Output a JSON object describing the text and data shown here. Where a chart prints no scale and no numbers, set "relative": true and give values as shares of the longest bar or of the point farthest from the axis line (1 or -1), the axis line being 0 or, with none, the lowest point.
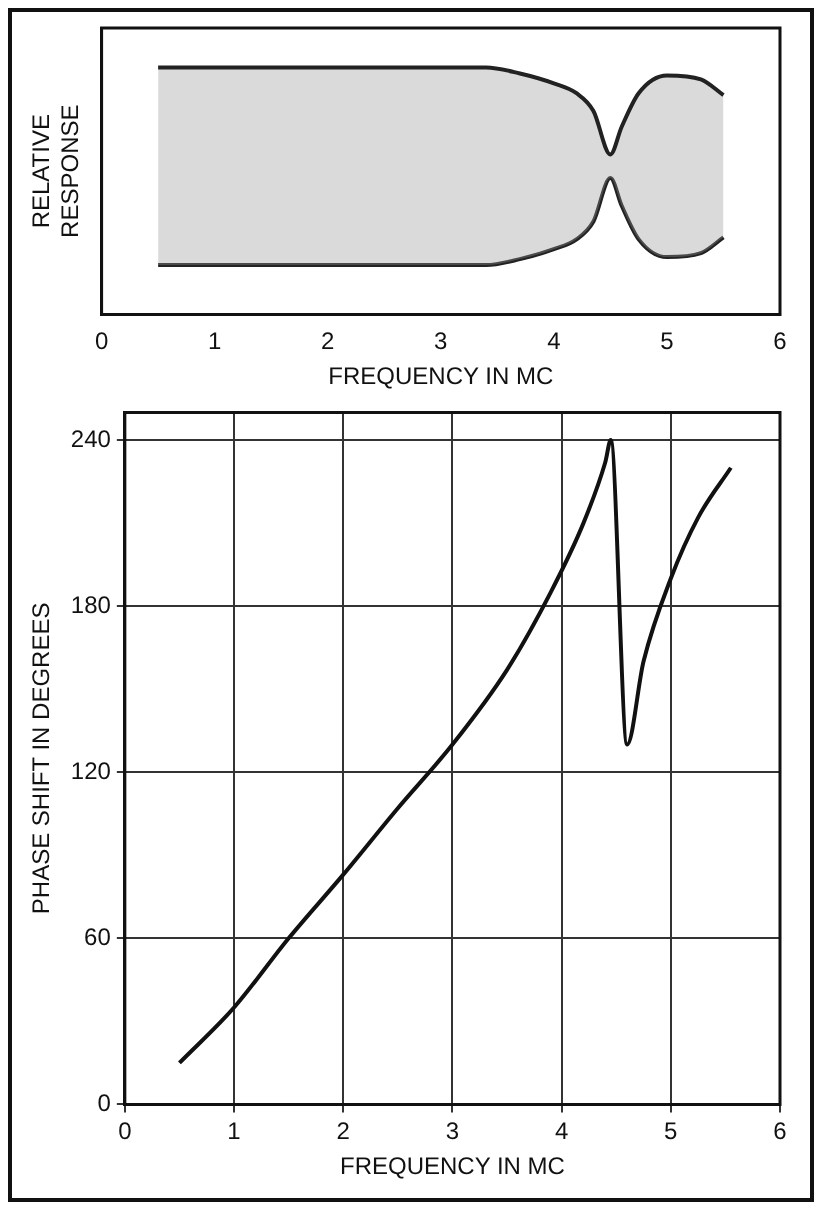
{
  "chart_data": [
    {
      "type": "area",
      "relative": true,
      "xlabel": "FREQUENCY IN MC",
      "ylabel": "RELATIVE RESPONSE",
      "xlim": [
        0,
        6
      ],
      "xticks": [
        0,
        1,
        2,
        3,
        4,
        5,
        6
      ],
      "series": [
        {
          "color": "#222222",
          "x": [
            0.5,
            1,
            2,
            3,
            3.4,
            3.7,
            4.0,
            4.2,
            4.35,
            4.5,
            4.6,
            4.75,
            5.0,
            5.3,
            5.5
          ],
          "values": [
            1,
            1,
            1,
            1,
            1,
            0.97,
            0.92,
            0.87,
            0.78,
            0.56,
            0.7,
            0.87,
            0.96,
            0.94,
            0.86
          ]
        },
        {
          "type": "line",
          "color": "#222222",
          "x": [
            0.5,
            1,
            2,
            3,
            3.4,
            3.7,
            4.0,
            4.2,
            4.35,
            4.5,
            4.6,
            4.75,
            5.0,
            5.3,
            5.5
          ],
          "values": [
            0,
            0,
            0,
            0,
            0,
            0.03,
            0.08,
            0.13,
            0.22,
            0.44,
            0.3,
            0.13,
            0.04,
            0.06,
            0.14
          ]
        }
      ]
    },
    {
      "type": "line",
      "xlabel": "FREQUENCY IN MC",
      "ylabel": "PHASE SHIFT IN DEGREES",
      "xlim": [
        0,
        6
      ],
      "xticks": [
        0,
        1,
        2,
        3,
        4,
        5,
        6
      ],
      "ylim": [
        0,
        250
      ],
      "yticks": [
        0,
        60,
        120,
        180,
        240
      ],
      "grid": true,
      "series": [
        {
          "color": "#111111",
          "x": [
            0.5,
            1,
            1.5,
            2,
            2.5,
            3,
            3.5,
            3.9,
            4.2,
            4.4,
            4.45,
            4.6,
            4.75,
            5,
            5.25,
            5.55
          ],
          "values": [
            15,
            35,
            60,
            83,
            107,
            130,
            157,
            185,
            210,
            232,
            240,
            130,
            160,
            190,
            212,
            230
          ]
        }
      ]
    }
  ]
}
